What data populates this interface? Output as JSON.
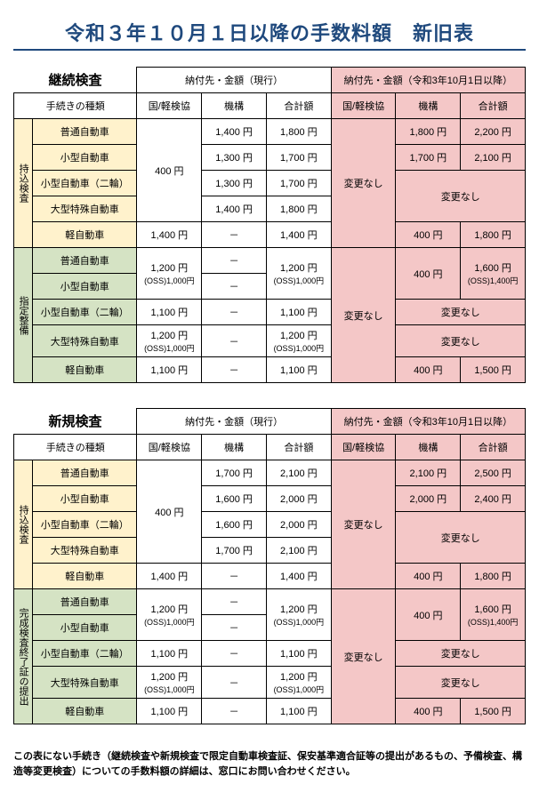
{
  "title": "令和３年１０月１日以降の手数料額　新旧表",
  "headers": {
    "procedure": "手続きの種類",
    "current": "納付先・金額（現行）",
    "new": "納付先・金額（令和3年10月1日以降）",
    "col1": "国/軽検協",
    "col2": "機構",
    "col3": "合計額"
  },
  "common": {
    "nochange": "変更なし",
    "dash": "－",
    "y400": "400 円",
    "y1400": "1,400 円",
    "y1100": "1,100 円"
  },
  "oss": {
    "l1": "1,200 円",
    "l2": "(OSS)1,000円"
  },
  "table1": {
    "section": "継続検査",
    "grp1": "持込検査",
    "grp2": "指定整備",
    "types": [
      "普通自動車",
      "小型自動車",
      "小型自動車（二輪）",
      "大型特殊自動車",
      "軽自動車"
    ],
    "g1": {
      "cur_kikou": [
        "1,400 円",
        "1,300 円",
        "1,300 円",
        "1,400 円"
      ],
      "cur_total": [
        "1,800 円",
        "1,700 円",
        "1,700 円",
        "1,800 円"
      ],
      "new_kikou": [
        "1,800 円",
        "1,700 円"
      ],
      "new_total": [
        "2,200 円",
        "2,100 円",
        "1,800 円"
      ]
    },
    "g2": {
      "new_kikou": "400 円",
      "new_total_main": "1,600 円",
      "new_total_sub": "(OSS)1,400円",
      "new_total_kei": "1,500 円"
    }
  },
  "table2": {
    "section": "新規検査",
    "grp1": "持込検査",
    "grp2": "完成検査終了証の提出",
    "types": [
      "普通自動車",
      "小型自動車",
      "小型自動車（二輪）",
      "大型特殊自動車",
      "軽自動車"
    ],
    "g1": {
      "cur_kikou": [
        "1,700 円",
        "1,600 円",
        "1,600 円",
        "1,700 円"
      ],
      "cur_total": [
        "2,100 円",
        "2,000 円",
        "2,000 円",
        "2,100 円"
      ],
      "new_kikou": [
        "2,100 円",
        "2,000 円"
      ],
      "new_total": [
        "2,500 円",
        "2,400 円",
        "1,800 円"
      ]
    },
    "g2": {
      "new_kikou": "400 円",
      "new_total_main": "1,600 円",
      "new_total_sub": "(OSS)1,400円",
      "new_total_kei": "1,500 円"
    }
  },
  "footnote": "この表にない手続き（継続検査や新規検査で限定自動車検査証、保安基準適合証等の提出があるもの、予備検査、構造等変更検査）についての手数料額の詳細は、窓口にお問い合わせください。"
}
